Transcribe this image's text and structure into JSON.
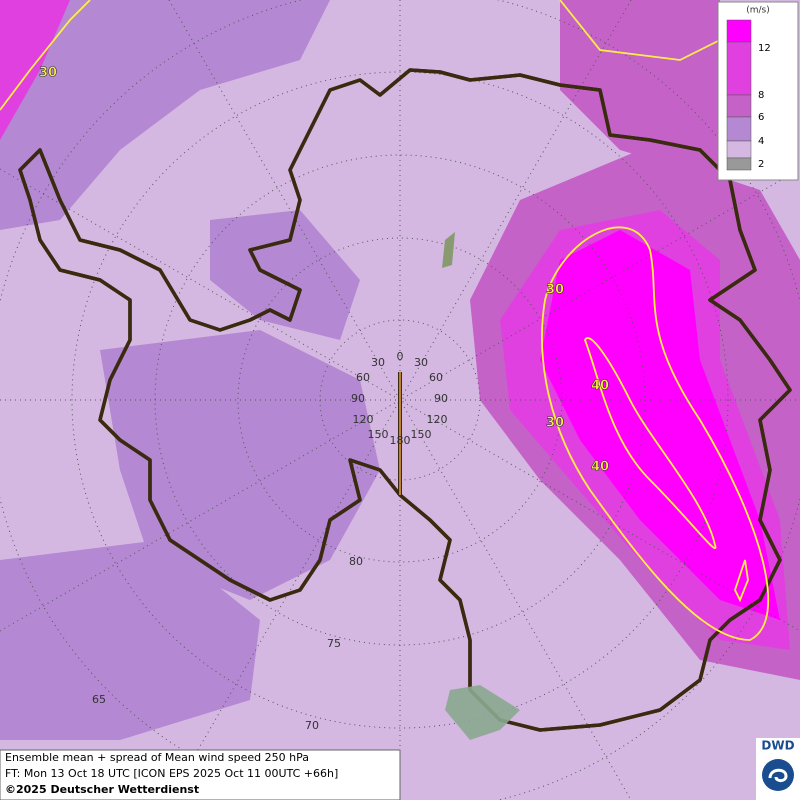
{
  "legend": {
    "unit": "(m/s)",
    "levels": [
      {
        "label": "12",
        "color": "#ff00ff"
      },
      {
        "label": "8",
        "color": "#e040e0"
      },
      {
        "label": "6",
        "color": "#c462c8"
      },
      {
        "label": "4",
        "color": "#b488d2"
      },
      {
        "label": "2",
        "color": "#d4b8e2"
      }
    ]
  },
  "contour_labels": [
    "30",
    "30",
    "40",
    "30",
    "40"
  ],
  "meridian_labels": [
    "0",
    "30",
    "30",
    "60",
    "60",
    "90",
    "90",
    "120",
    "120",
    "150",
    "150",
    "180"
  ],
  "latitude_labels": [
    "80",
    "75",
    "70",
    "65"
  ],
  "footer": {
    "line1": "Ensemble mean + spread of Mean wind speed 250 hPa",
    "line2": "FT: Mon 13 Oct 18 UTC [ICON EPS 2025 Oct 11 00UTC +66h]",
    "line3": "©2025 Deutscher Wetterdienst"
  },
  "logo": "DWD"
}
